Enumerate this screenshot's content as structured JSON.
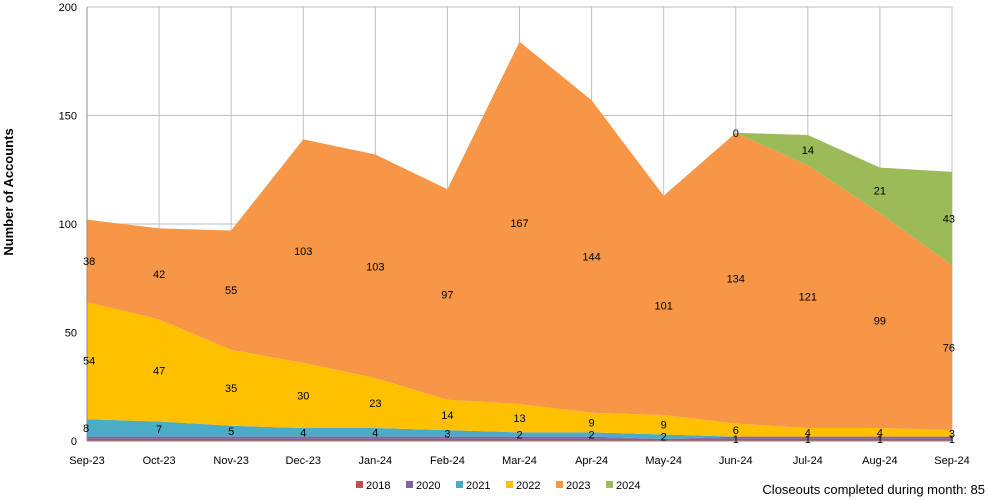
{
  "chart_data": {
    "type": "area",
    "stacked": true,
    "ylabel": "Number of Accounts",
    "ylim": [
      0,
      200
    ],
    "yticks": [
      0,
      50,
      100,
      150,
      200
    ],
    "grid": true,
    "legend_position": "bottom-center",
    "categories": [
      "Sep-23",
      "Oct-23",
      "Nov-23",
      "Dec-23",
      "Jan-24",
      "Feb-24",
      "Mar-24",
      "Apr-24",
      "May-24",
      "Jun-24",
      "Jul-24",
      "Aug-24",
      "Sep-24"
    ],
    "series": [
      {
        "name": "2018",
        "color": "#c0504d",
        "values": [
          1,
          1,
          1,
          1,
          1,
          1,
          1,
          1,
          1,
          1,
          1,
          1,
          1
        ],
        "labels": [
          "",
          "",
          "",
          "",
          "",
          "",
          "",
          "",
          "",
          "1",
          "1",
          "1",
          "1"
        ]
      },
      {
        "name": "2020",
        "color": "#8064a2",
        "values": [
          1,
          1,
          1,
          1,
          1,
          1,
          1,
          1,
          0,
          1,
          1,
          1,
          1
        ],
        "labels": [
          "",
          "",
          "",
          "",
          "",
          "",
          "",
          "",
          "",
          "",
          "",
          "",
          ""
        ]
      },
      {
        "name": "2021",
        "color": "#4bacc6",
        "values": [
          8,
          7,
          5,
          4,
          4,
          3,
          2,
          2,
          2,
          0,
          0,
          0,
          0
        ],
        "labels": [
          "8",
          "7",
          "5",
          "4",
          "4",
          "3",
          "2",
          "2",
          "2",
          "",
          "",
          "",
          ""
        ]
      },
      {
        "name": "2022",
        "color": "#ffc000",
        "values": [
          54,
          47,
          35,
          30,
          23,
          14,
          13,
          9,
          9,
          6,
          4,
          4,
          3
        ],
        "labels": [
          "54",
          "47",
          "35",
          "30",
          "23",
          "14",
          "13",
          "9",
          "9",
          "6",
          "4",
          "4",
          "3"
        ]
      },
      {
        "name": "2023",
        "color": "#f79646",
        "values": [
          38,
          42,
          55,
          103,
          103,
          97,
          167,
          144,
          101,
          134,
          121,
          99,
          76
        ],
        "labels": [
          "38",
          "42",
          "55",
          "103",
          "103",
          "97",
          "167",
          "144",
          "101",
          "134",
          "121",
          "99",
          "76"
        ]
      },
      {
        "name": "2024",
        "color": "#9bbb59",
        "values": [
          0,
          0,
          0,
          0,
          0,
          0,
          0,
          0,
          0,
          0,
          14,
          21,
          43
        ],
        "labels": [
          "",
          "",
          "",
          "",
          "",
          "",
          "",
          "",
          "",
          "0",
          "14",
          "21",
          "43"
        ]
      }
    ],
    "footnote": "Closeouts completed during month: 85"
  }
}
